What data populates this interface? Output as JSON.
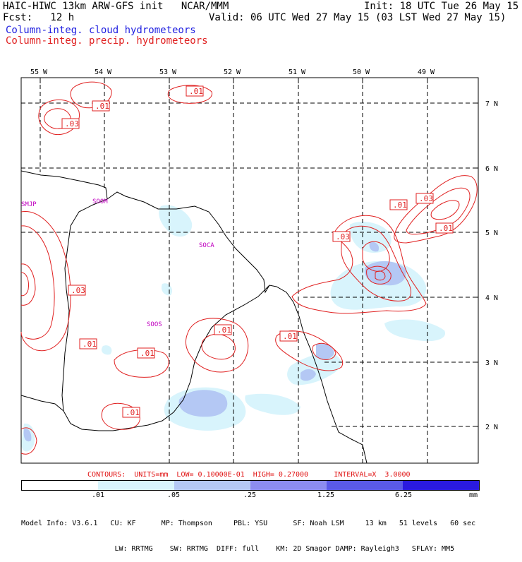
{
  "header": {
    "line1_left": "HAIC-HIWC 13km ARW-GFS init   NCAR/MMM",
    "line1_right": "Init: 18 UTC Tue 26 May 15",
    "line2_left": "Fcst:   12 h",
    "line2_right": "Valid: 06 UTC Wed 27 May 15 (03 LST Wed 27 May 15)",
    "legend_cloud": "Column-integ. cloud hydrometeors",
    "legend_precip": "Column-integ. precip. hydrometeors"
  },
  "axes": {
    "lon_labels": [
      "55 W",
      "54 W",
      "53 W",
      "52 W",
      "51 W",
      "50 W",
      "49 W"
    ],
    "lat_labels": [
      "7 N",
      "6 N",
      "5 N",
      "4 N",
      "3 N",
      "2 N"
    ]
  },
  "stations": [
    "SMJP",
    "SOOM",
    "SOCA",
    "SOOS"
  ],
  "contour_labels": [
    ".01",
    ".01",
    ".03",
    ".03",
    ".01",
    ".03",
    ".01",
    ".01",
    ".03",
    ".01",
    ".01",
    ".01",
    ".01"
  ],
  "contour_info": "CONTOURS:  UNITS=mm  LOW= 0.10000E-01  HIGH= 0.27000      INTERVAL=X  3.0000",
  "colorbar": {
    "labels": [
      ".01",
      ".05",
      ".25",
      "1.25",
      "6.25",
      "mm"
    ],
    "colors": [
      "#ffffff",
      "#d8f4fc",
      "#b4c8f4",
      "#8c8cf0",
      "#5a5ae8",
      "#2a1ae0"
    ]
  },
  "model_info": {
    "line1": "Model Info: V3.6.1   CU: KF      MP: Thompson     PBL: YSU      SF: Noah LSM     13 km   51 levels   60 sec",
    "line2": "                      LW: RRTMG    SW: RRTMG  DIFF: full    KM: 2D Smagor DAMP: Rayleigh3   SFLAY: MM5"
  }
}
